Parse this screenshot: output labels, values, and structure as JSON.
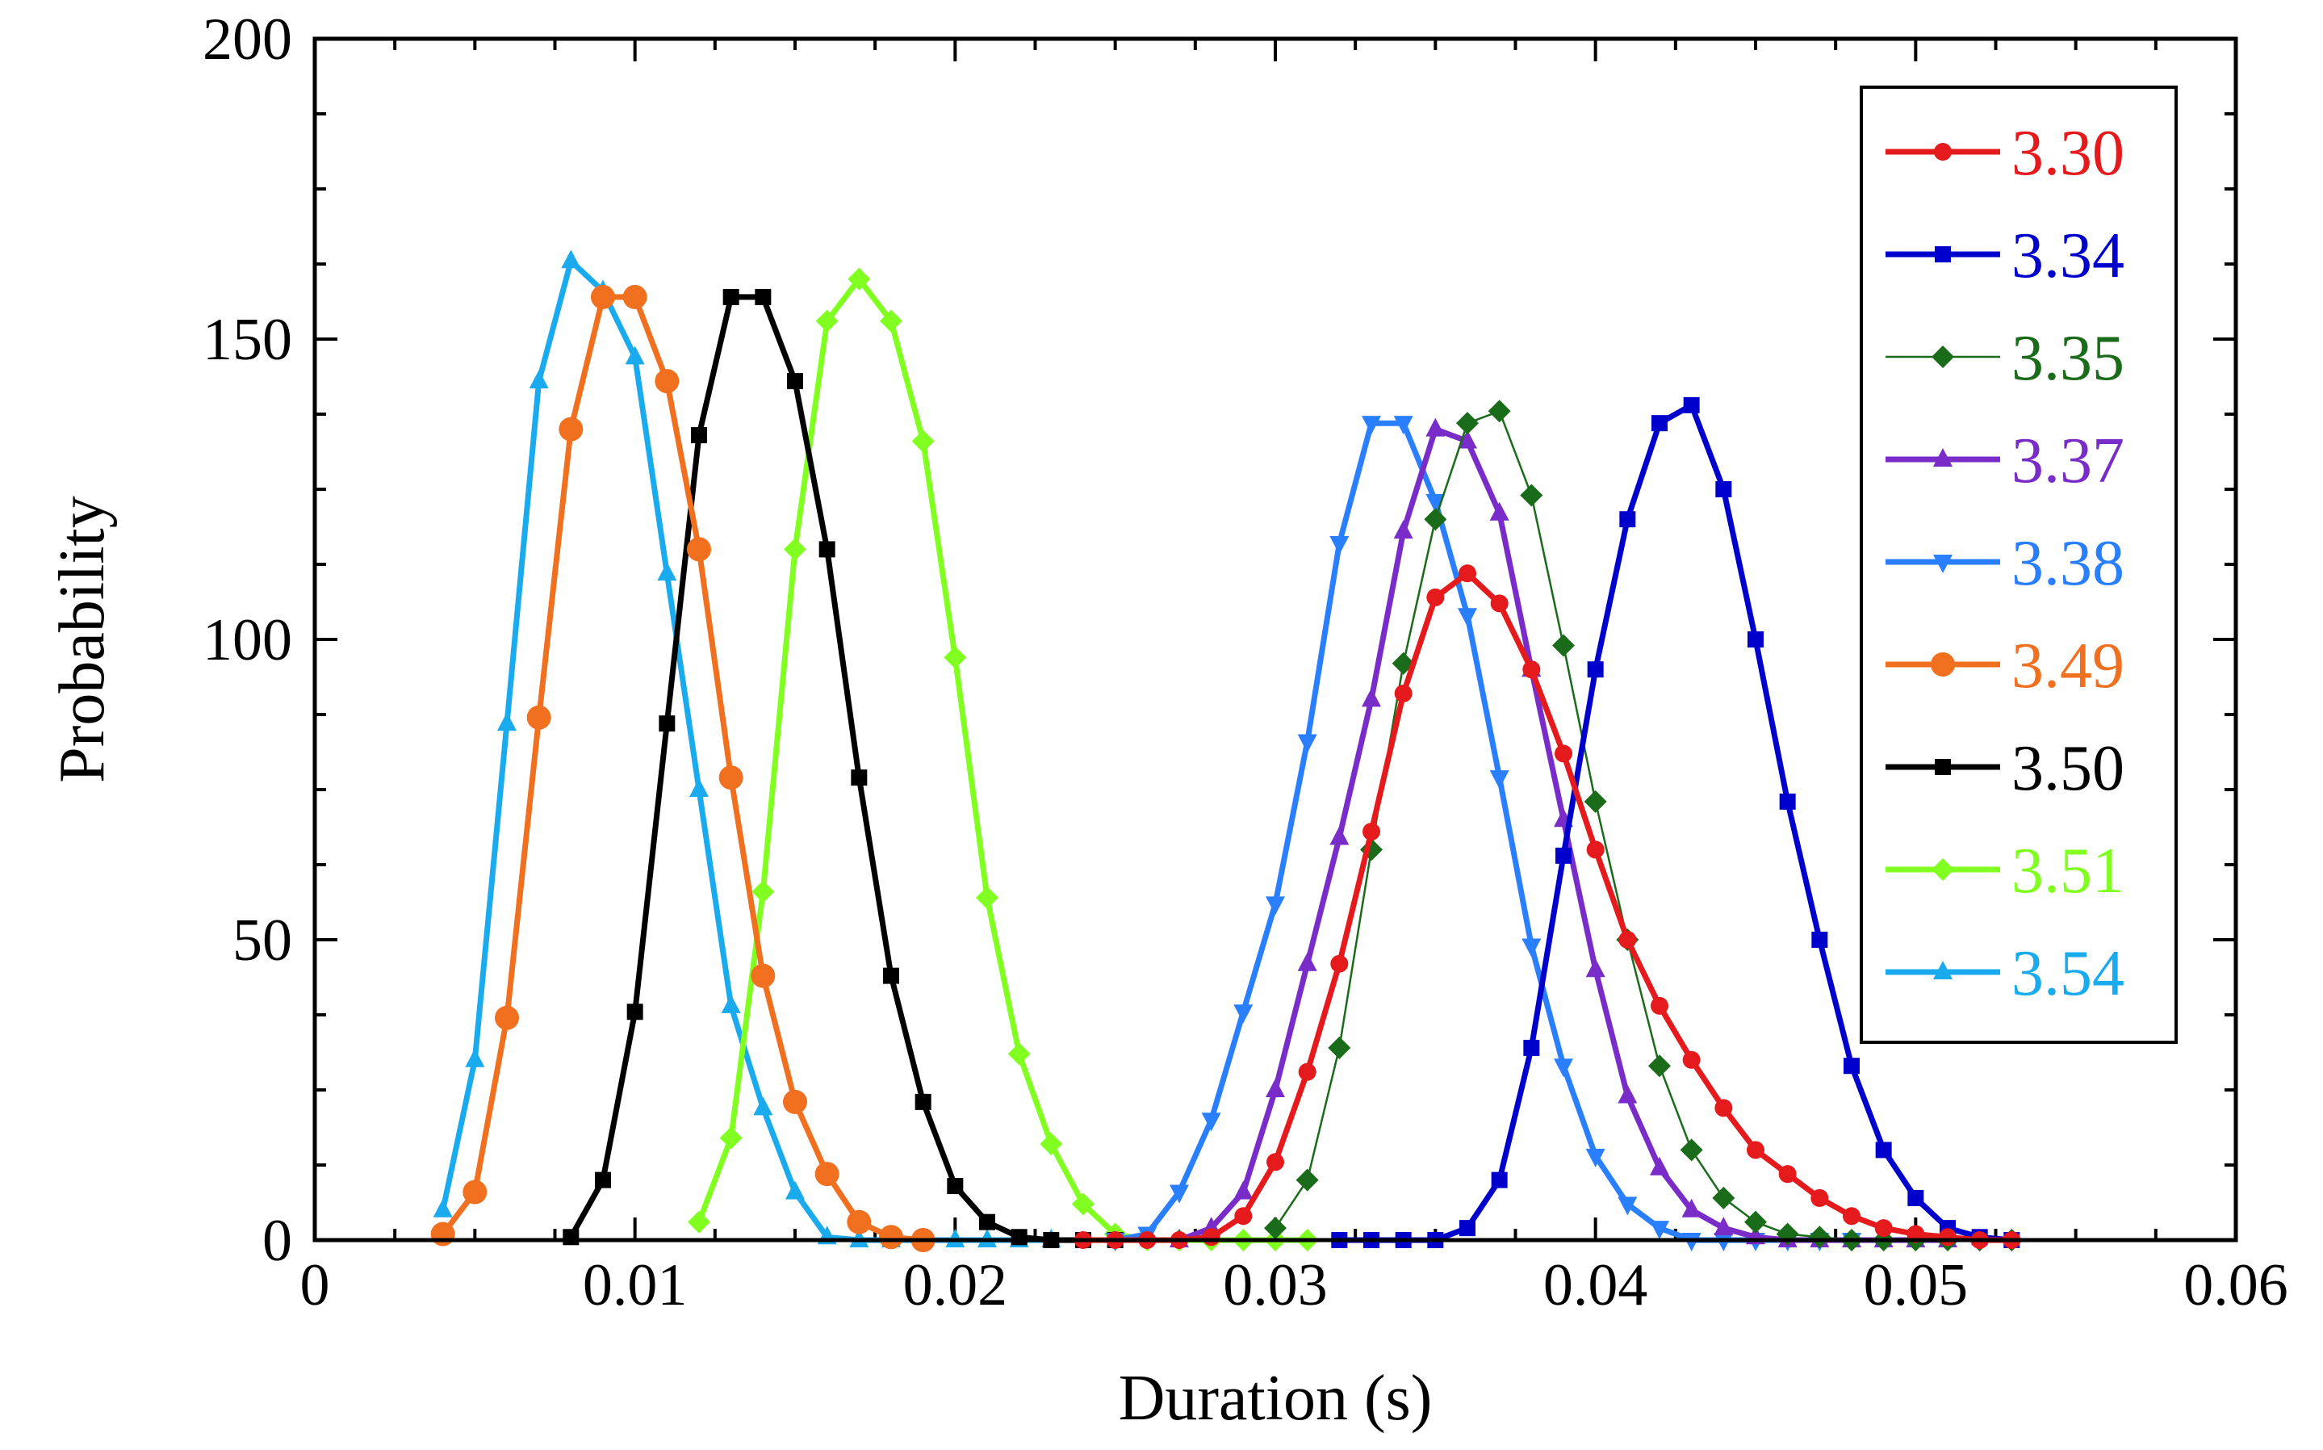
{
  "chart_data": {
    "type": "line",
    "title": "",
    "xlabel": "Duration (s)",
    "ylabel": "Probability",
    "xlim": [
      0,
      0.06
    ],
    "ylim": [
      0,
      200
    ],
    "xticks": [
      0,
      0.01,
      0.02,
      0.03,
      0.04,
      0.05,
      0.06
    ],
    "xtick_labels": [
      "0",
      "0.01",
      "0.02",
      "0.03",
      "0.04",
      "0.05",
      "0.06"
    ],
    "yticks": [
      0,
      50,
      100,
      150,
      200
    ],
    "ytick_labels": [
      "0",
      "50",
      "100",
      "150",
      "200"
    ],
    "grid": false,
    "legend_position": "top-right",
    "series": [
      {
        "name": "3.30",
        "color": "#e41a1c",
        "marker": "circle",
        "line": "thick",
        "x": [
          0.024,
          0.025,
          0.026,
          0.027,
          0.028,
          0.029,
          0.03,
          0.031,
          0.032,
          0.033,
          0.034,
          0.035,
          0.036,
          0.037,
          0.038,
          0.039,
          0.04,
          0.041,
          0.042,
          0.043,
          0.044,
          0.045,
          0.046,
          0.047,
          0.048,
          0.049,
          0.05,
          0.051,
          0.052,
          0.053
        ],
        "y": [
          0,
          0,
          0,
          0,
          0.5,
          4,
          13,
          28,
          46,
          68,
          91,
          107,
          111,
          106,
          95,
          81,
          65,
          50,
          39,
          30,
          22,
          15,
          11,
          7,
          4,
          2,
          1,
          0.5,
          0,
          0
        ]
      },
      {
        "name": "3.34",
        "color": "#0000cc",
        "marker": "square",
        "line": "thick",
        "x": [
          0.032,
          0.033,
          0.034,
          0.035,
          0.036,
          0.037,
          0.038,
          0.039,
          0.04,
          0.041,
          0.042,
          0.043,
          0.044,
          0.045,
          0.046,
          0.047,
          0.048,
          0.049,
          0.05,
          0.051,
          0.052,
          0.053
        ],
        "y": [
          0,
          0,
          0,
          0,
          2,
          10,
          32,
          64,
          95,
          120,
          136,
          139,
          125,
          100,
          73,
          50,
          29,
          15,
          7,
          2,
          0.5,
          0
        ]
      },
      {
        "name": "3.35",
        "color": "#1a6b1a",
        "marker": "diamond",
        "line": "thin",
        "x": [
          0.03,
          0.031,
          0.032,
          0.033,
          0.034,
          0.035,
          0.036,
          0.037,
          0.038,
          0.039,
          0.04,
          0.041,
          0.042,
          0.043,
          0.044,
          0.045,
          0.046,
          0.047,
          0.048,
          0.049,
          0.05,
          0.051,
          0.052,
          0.053
        ],
        "y": [
          2,
          10,
          32,
          65,
          96,
          120,
          136,
          138,
          124,
          99,
          73,
          50,
          29,
          15,
          7,
          3,
          1,
          0.5,
          0,
          0,
          0,
          0,
          0,
          0
        ]
      },
      {
        "name": "3.37",
        "color": "#7a2cc8",
        "marker": "triangle-up",
        "line": "thick",
        "x": [
          0.027,
          0.028,
          0.029,
          0.03,
          0.031,
          0.032,
          0.033,
          0.034,
          0.035,
          0.036,
          0.037,
          0.038,
          0.039,
          0.04,
          0.041,
          0.042,
          0.043,
          0.044,
          0.045,
          0.046,
          0.047,
          0.048,
          0.049,
          0.05,
          0.051
        ],
        "y": [
          0,
          2,
          8,
          25,
          46,
          67,
          90,
          118,
          135,
          133,
          121,
          95,
          70,
          45,
          24,
          12,
          5,
          2,
          0.5,
          0,
          0,
          0,
          0,
          0,
          0
        ]
      },
      {
        "name": "3.38",
        "color": "#2a7fff",
        "marker": "triangle-down",
        "line": "thick",
        "x": [
          0.025,
          0.026,
          0.027,
          0.028,
          0.029,
          0.03,
          0.031,
          0.032,
          0.033,
          0.034,
          0.035,
          0.036,
          0.037,
          0.038,
          0.039,
          0.04,
          0.041,
          0.042,
          0.043,
          0.044,
          0.045,
          0.046,
          0.047,
          0.048
        ],
        "y": [
          0,
          1,
          8,
          20,
          38,
          56,
          83,
          116,
          136,
          136,
          123,
          104,
          77,
          49,
          29,
          14,
          6,
          2,
          0,
          0,
          0,
          0,
          0,
          0
        ]
      },
      {
        "name": "3.49",
        "color": "#f07020",
        "marker": "circle-large",
        "line": "thick",
        "x": [
          0.004,
          0.005,
          0.006,
          0.007,
          0.008,
          0.009,
          0.01,
          0.011,
          0.012,
          0.013,
          0.014,
          0.015,
          0.016,
          0.017,
          0.018,
          0.019
        ],
        "y": [
          1,
          8,
          37,
          87,
          135,
          157,
          157,
          143,
          115,
          77,
          44,
          23,
          11,
          3,
          0.5,
          0
        ]
      },
      {
        "name": "3.50",
        "color": "#000000",
        "marker": "square",
        "line": "thick",
        "x": [
          0.008,
          0.009,
          0.01,
          0.011,
          0.012,
          0.013,
          0.014,
          0.015,
          0.016,
          0.017,
          0.018,
          0.019,
          0.02,
          0.021,
          0.022,
          0.023,
          0.024,
          0.025
        ],
        "y": [
          0.5,
          10,
          38,
          86,
          134,
          157,
          157,
          143,
          115,
          77,
          44,
          23,
          9,
          3,
          0.5,
          0,
          0,
          0
        ]
      },
      {
        "name": "3.51",
        "color": "#80ff20",
        "marker": "diamond",
        "line": "thick",
        "x": [
          0.012,
          0.013,
          0.014,
          0.015,
          0.016,
          0.017,
          0.018,
          0.019,
          0.02,
          0.021,
          0.022,
          0.023,
          0.024,
          0.025,
          0.026,
          0.027,
          0.028,
          0.029,
          0.03,
          0.031
        ],
        "y": [
          3,
          17,
          58,
          115,
          153,
          160,
          153,
          133,
          97,
          57,
          31,
          16,
          6,
          1,
          0,
          0,
          0,
          0,
          0,
          0
        ]
      },
      {
        "name": "3.54",
        "color": "#1aaaee",
        "marker": "triangle-up",
        "line": "thick",
        "x": [
          0.004,
          0.005,
          0.006,
          0.007,
          0.008,
          0.009,
          0.01,
          0.011,
          0.012,
          0.013,
          0.014,
          0.015,
          0.016,
          0.017,
          0.018,
          0.019,
          0.02,
          0.021,
          0.022,
          0.023
        ],
        "y": [
          5,
          30,
          86,
          143,
          163,
          158,
          147,
          111,
          75,
          39,
          22,
          8,
          0.5,
          0,
          0,
          0,
          0,
          0,
          0,
          0
        ]
      }
    ]
  }
}
